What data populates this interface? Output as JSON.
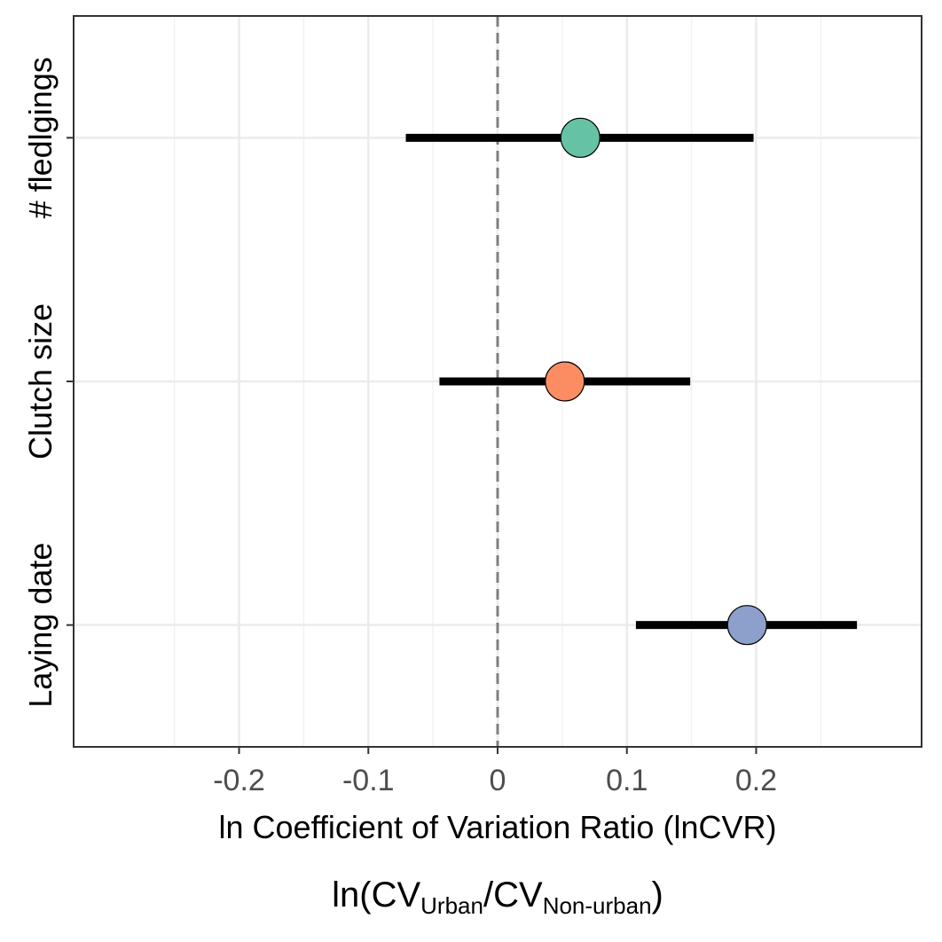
{
  "chart_data": {
    "type": "forest",
    "categories": [
      "# fledlgings",
      "Clutch size",
      "Laying date"
    ],
    "points": [
      {
        "category": "# fledlgings",
        "estimate": 0.064,
        "ci_low": -0.071,
        "ci_high": 0.198,
        "color": "#66c2a5"
      },
      {
        "category": "Clutch size",
        "estimate": 0.052,
        "ci_low": -0.045,
        "ci_high": 0.149,
        "color": "#fc8d62"
      },
      {
        "category": "Laying date",
        "estimate": 0.193,
        "ci_low": 0.107,
        "ci_high": 0.278,
        "color": "#8da0cb"
      }
    ],
    "x_ticks": [
      -0.2,
      -0.1,
      0,
      0.1,
      0.2
    ],
    "x_tick_labels": [
      "-0.2",
      "-0.1",
      "0",
      "0.1",
      "0.2"
    ],
    "xlim": [
      -0.328,
      0.328
    ],
    "reference_line": 0,
    "xlabel": "ln Coefficient of Variation Ratio (lnCVR)",
    "formula": {
      "prefix": "ln(",
      "numerator": "CV",
      "numerator_sub": "Urban",
      "divider": "/",
      "denominator": "CV",
      "denominator_sub": "Non-urban",
      "suffix": ")"
    },
    "grid": true,
    "legend": "none",
    "colors": {
      "background": "#ffffff",
      "grid_major": "#ebebeb",
      "grid_minor": "#f2f2f2",
      "reference": "#7f7f7f",
      "interval": "#000000",
      "panel_border": "#333333"
    }
  }
}
